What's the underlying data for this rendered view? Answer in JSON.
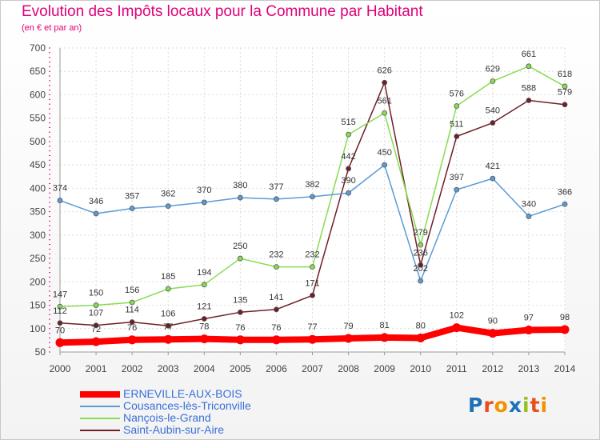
{
  "header": {
    "title": "Evolution des Impôts locaux pour la Commune par Habitant",
    "subtitle": "(en € et par an)"
  },
  "logo": {
    "text": "Proxiti",
    "letter_colors": [
      "#1d71b8",
      "#e94e1b",
      "#f39200",
      "#1d71b8",
      "#95c11f",
      "#e94e1b",
      "#f39200"
    ]
  },
  "chart_data": {
    "type": "line",
    "title": "Evolution des Impôts locaux pour la Commune par Habitant",
    "ylabel": "(en € et par an)",
    "xlabel": "",
    "ylim": [
      50,
      700
    ],
    "yticks": [
      50,
      100,
      150,
      200,
      250,
      300,
      350,
      400,
      450,
      500,
      550,
      600,
      650,
      700
    ],
    "categories": [
      "2000",
      "2001",
      "2002",
      "2003",
      "2004",
      "2005",
      "2006",
      "2007",
      "2008",
      "2009",
      "2010",
      "2011",
      "2012",
      "2013",
      "2014"
    ],
    "grid": true,
    "series": [
      {
        "name": "ERNEVILLE-AUX-BOIS",
        "color": "#ff0000",
        "marker": "#ff0000",
        "bold": true,
        "values": [
          70,
          72,
          76,
          77,
          78,
          76,
          76,
          77,
          79,
          81,
          80,
          102,
          90,
          97,
          98
        ]
      },
      {
        "name": "Cousances-lès-Triconville",
        "color": "#5b9bd5",
        "marker": "#5b9bd5",
        "bold": false,
        "values": [
          374,
          346,
          357,
          362,
          370,
          380,
          377,
          382,
          390,
          450,
          202,
          397,
          421,
          340,
          366
        ]
      },
      {
        "name": "Nançois-le-Grand",
        "color": "#86dc52",
        "marker": "#86dc52",
        "bold": false,
        "values": [
          147,
          150,
          156,
          185,
          194,
          250,
          232,
          232,
          515,
          561,
          279,
          576,
          629,
          661,
          618
        ]
      },
      {
        "name": "Saint-Aubin-sur-Aire",
        "color": "#6e1f28",
        "marker": "#6e1f28",
        "bold": false,
        "values": [
          112,
          107,
          114,
          106,
          121,
          135,
          141,
          171,
          442,
          626,
          236,
          511,
          540,
          588,
          579
        ]
      }
    ]
  }
}
